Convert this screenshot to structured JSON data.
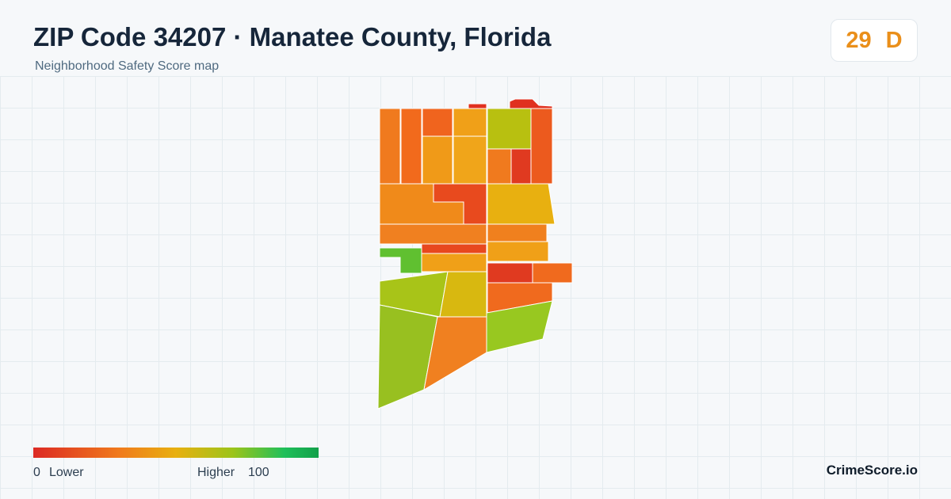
{
  "header": {
    "title": "ZIP Code 34207 · Manatee County, Florida",
    "subtitle": "Neighborhood Safety Score map"
  },
  "score": {
    "value": "29",
    "grade": "D"
  },
  "legend": {
    "min": "0",
    "min_label": "Lower",
    "max_label": "Higher",
    "max": "100"
  },
  "brand": "CrimeScore.io"
}
